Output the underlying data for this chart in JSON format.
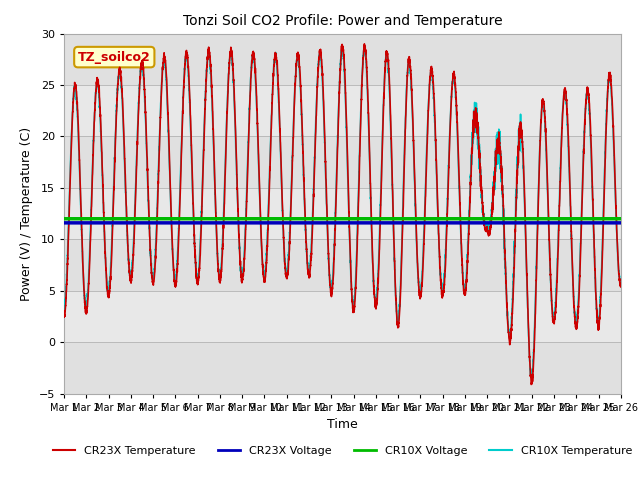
{
  "title": "Tonzi Soil CO2 Profile: Power and Temperature",
  "xlabel": "Time",
  "ylabel": "Power (V) / Temperature (C)",
  "ylim": [
    -5,
    30
  ],
  "yticks": [
    -5,
    0,
    5,
    10,
    15,
    20,
    25,
    30
  ],
  "xlim_days": [
    1,
    26
  ],
  "cr23x_voltage_value": 11.6,
  "cr10x_voltage_value": 12.0,
  "plot_bg": "#e8e8e8",
  "cr23x_temp_color": "#cc0000",
  "cr23x_volt_color": "#0000bb",
  "cr10x_volt_color": "#00bb00",
  "cr10x_temp_color": "#00cccc",
  "annotation_text": "TZ_soilco2",
  "annotation_bg": "#ffffcc",
  "annotation_border": "#cc9900",
  "legend_labels": [
    "CR23X Temperature",
    "CR23X Voltage",
    "CR10X Voltage",
    "CR10X Temperature"
  ],
  "legend_colors": [
    "#cc0000",
    "#0000bb",
    "#00bb00",
    "#00cccc"
  ]
}
